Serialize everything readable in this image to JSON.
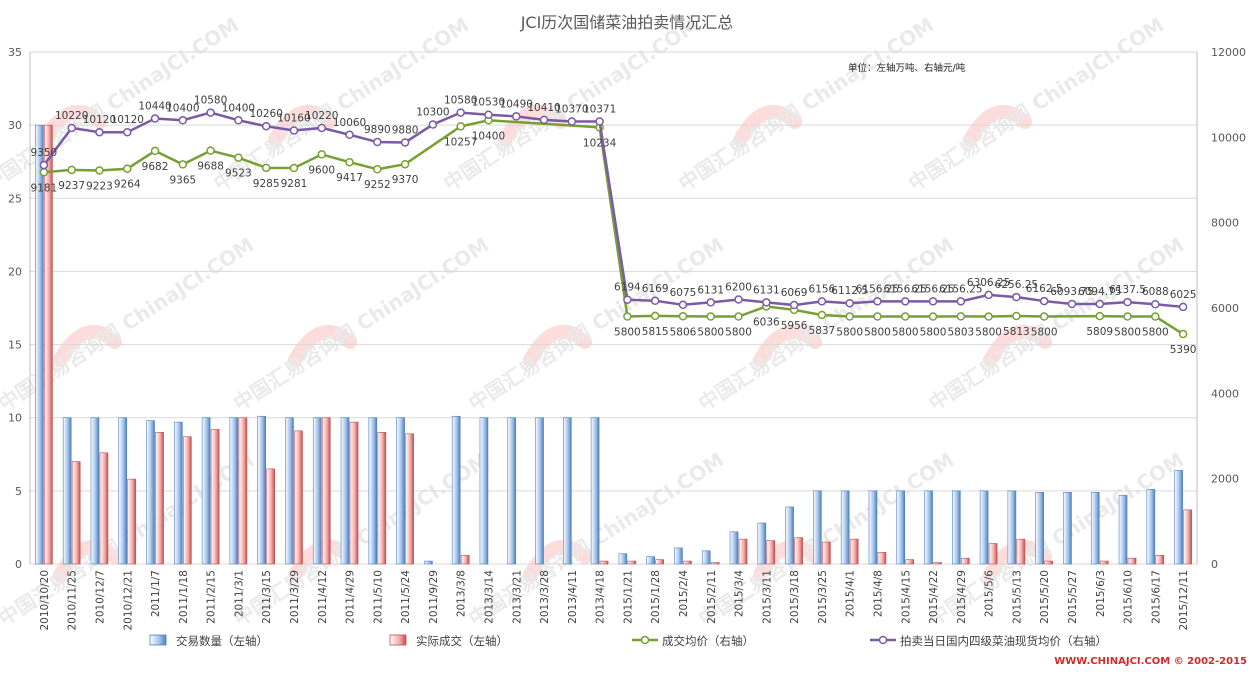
{
  "chart_data": {
    "type": "bar",
    "title": "JCI历次国储菜油拍卖情况汇总",
    "unit_note": "单位：左轴万吨、右轴元/吨",
    "categories": [
      "2010/10/20",
      "2010/11/25",
      "2010/12/7",
      "2010/12/21",
      "2011/1/7",
      "2011/1/18",
      "2011/2/15",
      "2011/3/1",
      "2011/3/15",
      "2011/3/29",
      "2011/4/12",
      "2011/4/29",
      "2011/5/10",
      "2011/5/24",
      "2011/9/29",
      "2013/3/8",
      "2013/3/14",
      "2013/3/21",
      "2013/3/28",
      "2013/4/11",
      "2013/4/18",
      "2015/1/21",
      "2015/1/28",
      "2015/2/4",
      "2015/2/11",
      "2015/3/4",
      "2015/3/11",
      "2015/3/18",
      "2015/3/25",
      "2015/4/1",
      "2015/4/8",
      "2015/4/15",
      "2015/4/22",
      "2015/4/29",
      "2015/5/6",
      "2015/5/13",
      "2015/5/20",
      "2015/5/27",
      "2015/6/3",
      "2015/6/10",
      "2015/6/17",
      "2015/12/11"
    ],
    "series": [
      {
        "name": "交易数量（左轴）",
        "axis": "left",
        "kind": "bar",
        "color": "#4f81bd",
        "values": [
          30,
          10,
          10,
          10,
          9.8,
          9.7,
          10,
          10,
          10.1,
          10,
          10,
          10,
          10,
          10,
          0.2,
          10.1,
          10,
          10,
          10,
          10,
          10,
          0.7,
          0.5,
          1.1,
          0.9,
          2.2,
          2.8,
          3.9,
          5,
          5,
          5,
          5,
          5,
          5,
          5,
          5,
          4.9,
          4.9,
          4.9,
          4.7,
          5.1,
          6.4
        ]
      },
      {
        "name": "实际成交（左轴）",
        "axis": "left",
        "kind": "bar",
        "color": "#c0504d",
        "values": [
          30,
          7,
          7.6,
          5.8,
          9,
          8.7,
          9.2,
          10,
          6.5,
          9.1,
          10,
          9.7,
          9,
          8.9,
          0,
          0.6,
          0,
          0,
          0,
          0,
          0.2,
          0.2,
          0.3,
          0.2,
          0.1,
          1.7,
          1.6,
          1.8,
          1.5,
          1.7,
          0.8,
          0.3,
          0.1,
          0.4,
          1.4,
          1.7,
          0.2,
          0,
          0.2,
          0.4,
          0.6,
          3.7
        ]
      },
      {
        "name": "成交均价（右轴）",
        "axis": "right",
        "kind": "line",
        "color": "#77a032",
        "values": [
          9181,
          9237,
          9223,
          9264,
          9682,
          9365,
          9688,
          9523,
          9285,
          9281,
          9600,
          9417,
          9252,
          9370,
          null,
          10257,
          10400,
          null,
          null,
          null,
          10234,
          5800,
          5815,
          5806,
          5800,
          5800,
          6036,
          5956,
          5837,
          5800,
          5800,
          5800,
          5800,
          5803,
          5800,
          5813,
          5800,
          null,
          5809,
          5800,
          5800,
          5390
        ]
      },
      {
        "name": "拍卖当日国内四级菜油现货均价（右轴）",
        "axis": "right",
        "kind": "line",
        "color": "#7b5aa6",
        "values": [
          9350,
          10220,
          10120,
          10120,
          10440,
          10400,
          10580,
          10400,
          10260,
          10160,
          10220,
          10060,
          9890,
          9880,
          10300,
          10580,
          10530,
          10490,
          10410,
          10370,
          10371,
          6194,
          6169,
          6075,
          6131,
          6200,
          6131,
          6069,
          6156,
          6112.5,
          6156.25,
          6156.25,
          6156.25,
          6156.25,
          6306.25,
          6256.25,
          6162.5,
          6093.75,
          6094.75,
          6137.5,
          6088,
          6025
        ]
      }
    ],
    "line_labels": {
      "avg_price": [
        "9181",
        "9237",
        "9223",
        "9264",
        "9682",
        "9365",
        "9688",
        "9523",
        "9285",
        "9281",
        "9600",
        "9417",
        "9252",
        "9370",
        null,
        "10257",
        "10400",
        null,
        null,
        null,
        "10234",
        "5800",
        "5815",
        "5806",
        "5800",
        "5800",
        "6036",
        "5956",
        "5837",
        "5800",
        "5800",
        "5800",
        "5800",
        "5803",
        "5800",
        "5813",
        "5800",
        null,
        "5809",
        "5800",
        "5800",
        "5390"
      ],
      "spot_price": [
        "9350",
        "10220",
        "10120",
        "10120",
        "10440",
        "10400",
        "10580",
        "10400",
        "10260",
        "10160",
        "10220",
        "10060",
        "9890",
        "9880",
        "10300",
        "10580",
        "10530",
        "10490",
        "10410",
        "10370",
        "10371",
        "6194",
        "6169",
        "6075",
        "6131",
        "6200",
        "6131",
        "6069",
        "6156",
        "6112.5",
        "6156.25",
        "6156.25",
        "6156.25",
        "6156.25",
        "6306.25",
        "6256.25",
        "6162.5",
        "6093.75",
        "6094.75",
        "6137.5",
        "6088",
        "6025"
      ]
    },
    "left_axis": {
      "min": 0,
      "max": 35,
      "ticks": [
        "0",
        "5",
        "10",
        "15",
        "20",
        "25",
        "30",
        "35"
      ]
    },
    "right_axis": {
      "min": 0,
      "max": 12000,
      "ticks": [
        "0",
        "2000",
        "4000",
        "6000",
        "8000",
        "10000",
        "12000"
      ]
    },
    "grid": true,
    "legend_position": "bottom"
  },
  "watermark_text": "中国汇易咨询网 ChinaJCI.COM",
  "footer": "WWW.CHINAJCI.COM © 2002-2015"
}
